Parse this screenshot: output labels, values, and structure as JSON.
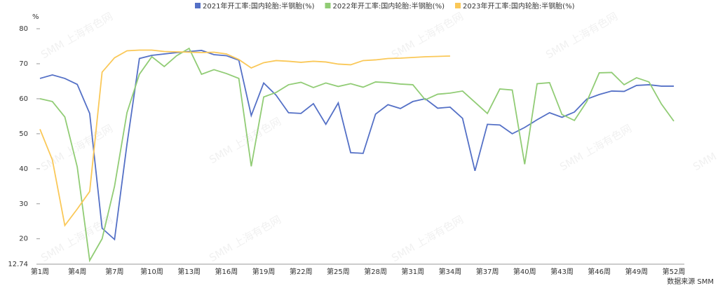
{
  "chart_data": {
    "type": "line",
    "unit_label": "%",
    "source": "数据来源 SMM",
    "watermark": "SMM 上海有色网",
    "categories": [
      "第1周",
      null,
      null,
      "第4周",
      null,
      null,
      "第7周",
      null,
      null,
      "第10周",
      null,
      null,
      "第13周",
      null,
      null,
      "第16周",
      null,
      null,
      "第19周",
      null,
      null,
      "第22周",
      null,
      null,
      "第25周",
      null,
      null,
      "第28周",
      null,
      null,
      "第31周",
      null,
      null,
      "第34周",
      null,
      null,
      "第37周",
      null,
      null,
      "第40周",
      null,
      null,
      "第43周",
      null,
      null,
      "第46周",
      null,
      null,
      "第49周",
      null,
      null,
      "第52周"
    ],
    "ylim": [
      12.74,
      80
    ],
    "yticks": [
      12.74,
      20,
      30,
      40,
      50,
      60,
      70,
      80
    ],
    "grid": false,
    "legend": "top",
    "series": [
      {
        "name": "2021年开工率:国内轮胎:半钢胎(%)",
        "color": "#5470c6",
        "values": [
          65.8,
          66.8,
          65.8,
          64.1,
          55.8,
          23,
          19.8,
          47,
          71.5,
          72.4,
          72.8,
          73.2,
          73.5,
          73.8,
          72.6,
          72.3,
          71,
          55.2,
          64.5,
          61,
          56,
          55.8,
          58.6,
          52.7,
          58.8,
          44.6,
          44.4,
          55.6,
          58.3,
          57.2,
          59.2,
          60,
          57.3,
          57.6,
          54.4,
          39.4,
          52.7,
          52.5,
          50,
          51.8,
          54,
          56,
          54.7,
          56.2,
          59.9,
          61.2,
          62.2,
          62.1,
          63.8,
          64,
          63.6,
          63.6
        ]
      },
      {
        "name": "2022年开工率:国内轮胎:半钢胎(%)",
        "color": "#91cc75",
        "values": [
          60,
          59.2,
          54.8,
          40.5,
          13.8,
          20,
          35,
          56,
          67,
          72,
          69.2,
          72.3,
          74.4,
          67,
          68.3,
          67.2,
          65.8,
          40.7,
          60.5,
          61.8,
          64,
          64.7,
          63.2,
          64.5,
          63.5,
          64.3,
          63.3,
          64.8,
          64.6,
          64.2,
          64,
          59.7,
          61.3,
          61.6,
          62.2,
          59,
          55.8,
          62.8,
          62.5,
          41.3,
          64.3,
          64.6,
          55.5,
          53.8,
          59.2,
          67.4,
          67.5,
          64,
          66,
          64.8,
          58.5,
          53.6
        ]
      },
      {
        "name": "2023年开工率:国内轮胎:半钢胎(%)",
        "color": "#fac858",
        "values": [
          51.3,
          42.5,
          23.8,
          28.5,
          33.5,
          67.6,
          71.7,
          73.7,
          73.9,
          73.9,
          73.5,
          73.4,
          73.3,
          73.2,
          73.3,
          72.8,
          71.2,
          68.8,
          70.3,
          70.9,
          70.7,
          70.4,
          70.7,
          70.5,
          69.9,
          69.7,
          70.9,
          71.1,
          71.5,
          71.6,
          71.8,
          72,
          72.1,
          72.2,
          null,
          null,
          null,
          null,
          null,
          null,
          null,
          null,
          null,
          null,
          null,
          null,
          null,
          null,
          null,
          null,
          null,
          null
        ]
      }
    ]
  }
}
